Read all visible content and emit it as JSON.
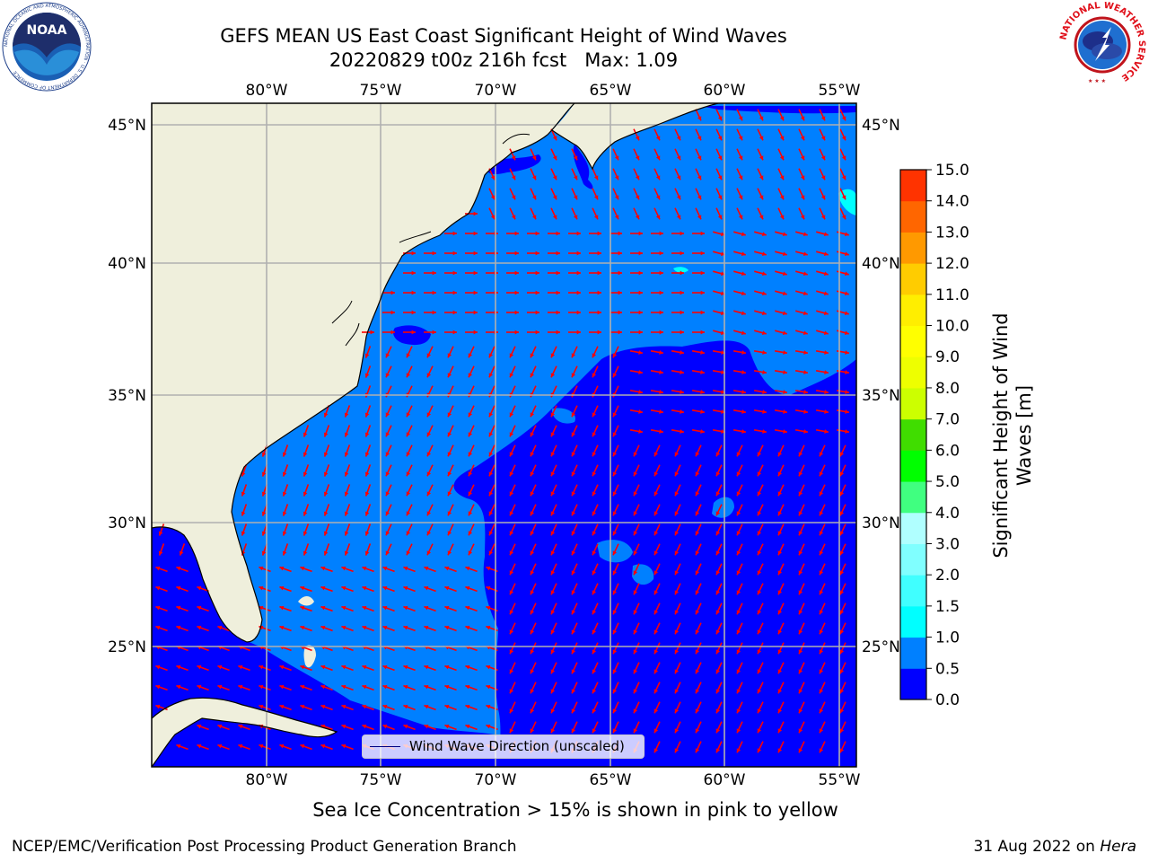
{
  "header": {
    "title_line1": "GEFS MEAN US East Coast Significant Height of Wind Waves",
    "title_line2": "20220829 t00z 216h fcst   Max: 1.09"
  },
  "logos": {
    "left": "noaa-logo",
    "right": "national-weather-service-logo",
    "left_text": "NOAA",
    "right_text": "NATIONAL WEATHER SERVICE",
    "left_ring_text": "NATIONAL OCEANIC AND ATMOSPHERIC ADMINISTRATION · U.S. DEPARTMENT OF COMMERCE"
  },
  "map": {
    "lon_labels": [
      "80°W",
      "75°W",
      "70°W",
      "65°W",
      "60°W",
      "55°W"
    ],
    "lat_labels": [
      "45°N",
      "40°N",
      "35°N",
      "30°N",
      "25°N"
    ],
    "legend_label": "Wind Wave Direction (unscaled)",
    "colors": {
      "land": "#efefdc",
      "wave_0_0_5": "#0000ff",
      "wave_0_5_1_0": "#0080ff",
      "wave_1_0_1_5": "#00ffff",
      "arrows": "#ff0000",
      "gridlines": "#b0b0b0"
    }
  },
  "colorbar": {
    "title": "Significant Height of Wind Waves [m]",
    "tick_labels": [
      "0.0",
      "0.5",
      "1.0",
      "1.5",
      "2.0",
      "3.0",
      "4.0",
      "5.0",
      "6.0",
      "7.0",
      "8.0",
      "9.0",
      "10.0",
      "11.0",
      "12.0",
      "13.0",
      "14.0",
      "15.0"
    ],
    "colors": [
      "#0000ff",
      "#0080ff",
      "#00ffff",
      "#40ffff",
      "#80ffff",
      "#b0ffff",
      "#40ff80",
      "#00ff00",
      "#40dd00",
      "#ccff00",
      "#eeff00",
      "#ffff00",
      "#ffee00",
      "#ffcc00",
      "#ff9900",
      "#ff6600",
      "#ff3300",
      "#ff0000"
    ]
  },
  "notes": {
    "ice_note": "Sea Ice Concentration > 15% is shown in pink to yellow",
    "footer_left": "NCEP/EMC/Verification Post Processing Product Generation Branch",
    "footer_date": "31 Aug 2022 on",
    "footer_machine": "Hera"
  }
}
